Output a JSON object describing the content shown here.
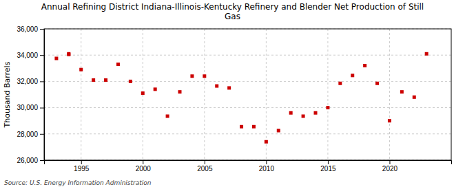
{
  "chart_data": {
    "type": "scatter",
    "title": "Annual Refining District Indiana-Illinois-Kentucky Refinery and Blender Net Production of Still\nGas",
    "ylabel": "Thousand Barrels",
    "annotation": "Source: U.S. Energy Information Administration",
    "color": "#cc0000",
    "marker": "square",
    "grid": true,
    "x": [
      1993,
      1994,
      1994,
      1995,
      1996,
      1997,
      1998,
      1999,
      2000,
      2001,
      2002,
      2003,
      2004,
      2005,
      2006,
      2007,
      2008,
      2009,
      2010,
      2011,
      2012,
      2013,
      2014,
      2015,
      2016,
      2017,
      2018,
      2019,
      2020,
      2021,
      2022,
      2023
    ],
    "values": [
      33750,
      34100,
      34050,
      32900,
      32100,
      32100,
      33300,
      32000,
      31100,
      31400,
      29350,
      31200,
      32400,
      32400,
      31650,
      31500,
      28550,
      28550,
      27400,
      28250,
      29600,
      29350,
      29600,
      30000,
      31850,
      32450,
      33200,
      31850,
      29000,
      31200,
      30800,
      34100
    ],
    "xlim": [
      1992,
      2025
    ],
    "ylim": [
      26000,
      36000
    ],
    "xticks": [
      1995,
      2000,
      2005,
      2010,
      2015,
      2020
    ],
    "yticks": [
      {
        "value": 26000,
        "label": "26,000"
      },
      {
        "value": 28000,
        "label": "28,000"
      },
      {
        "value": 30000,
        "label": "30,000"
      },
      {
        "value": 32000,
        "label": "32,000"
      },
      {
        "value": 34000,
        "label": "34,000"
      },
      {
        "value": 36000,
        "label": "36,000"
      }
    ]
  }
}
